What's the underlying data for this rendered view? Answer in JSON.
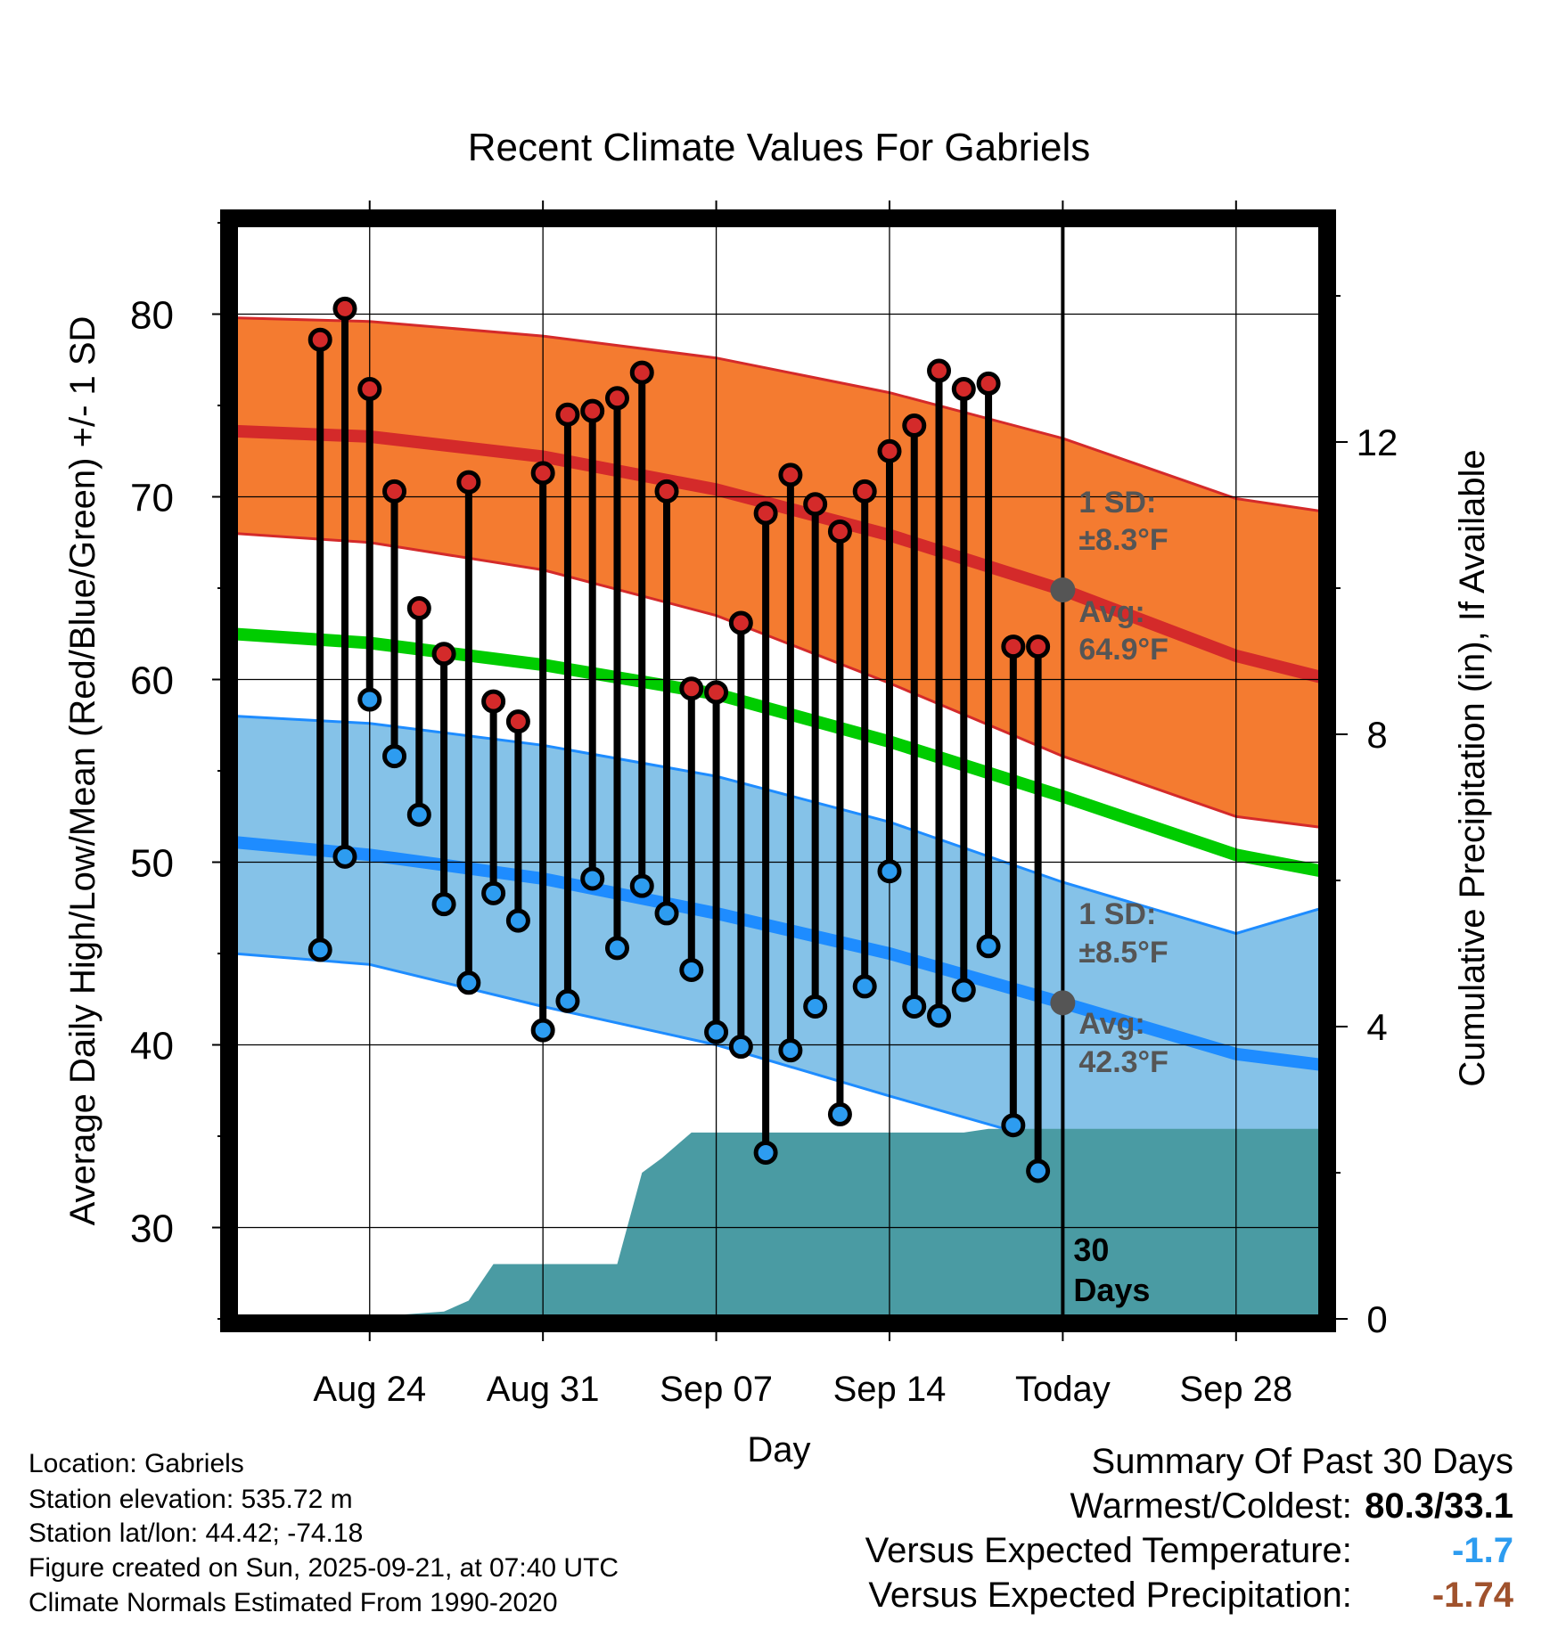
{
  "colors": {
    "high_band": "#f47b30",
    "high_band_edge": "#d42a2a",
    "high_avg": "#d42a2a",
    "low_band": "#85c2e8",
    "low_band_edge": "#1e8cff",
    "low_avg": "#1e8cff",
    "mean": "#00cc00",
    "precip": "#4a9ba3",
    "hi_marker": "#d42a2a",
    "lo_marker": "#2d9cf0",
    "annotation": "#555555",
    "anom_temp": "#2d9cf0",
    "anom_precip": "#a0522d"
  },
  "chart_data": {
    "type": "line",
    "title": "Recent Climate Values For Gabriels",
    "xlabel": "Day",
    "ylabel": "Average Daily High/Low/Mean (Red/Blue/Green) +/- 1 SD",
    "y2label": "Cumulative Precipitation (in), If Available",
    "xlim_day_offset": [
      -33.5,
      10.5
    ],
    "ylim": [
      25,
      85
    ],
    "y2lim": [
      0,
      15
    ],
    "x_ticks": [
      {
        "offset": -28,
        "label": "Aug 24"
      },
      {
        "offset": -21,
        "label": "Aug 31"
      },
      {
        "offset": -14,
        "label": "Sep 07"
      },
      {
        "offset": -7,
        "label": "Sep 14"
      },
      {
        "offset": 0,
        "label": "Today"
      },
      {
        "offset": 7,
        "label": "Sep 28"
      }
    ],
    "y_ticks": [
      30,
      40,
      50,
      60,
      70,
      80
    ],
    "y2_ticks": [
      0,
      4,
      8,
      12
    ],
    "normals_offsets": [
      -33.5,
      -28,
      -21,
      -14,
      -7,
      0,
      7,
      10.5
    ],
    "normal_high": [
      73.6,
      73.3,
      72.2,
      70.4,
      67.9,
      64.9,
      61.3,
      60.1
    ],
    "normal_high_plus_sd": [
      79.8,
      79.6,
      78.8,
      77.6,
      75.7,
      73.2,
      69.9,
      69.2
    ],
    "normal_high_minus_sd": [
      68.0,
      67.5,
      66.0,
      63.5,
      59.8,
      55.8,
      52.5,
      51.9
    ],
    "normal_mean": [
      62.5,
      62.0,
      60.8,
      59.2,
      56.6,
      53.6,
      50.4,
      49.5
    ],
    "normal_low": [
      51.1,
      50.4,
      49.1,
      47.2,
      45.0,
      42.3,
      39.5,
      38.9
    ],
    "normal_low_plus_sd": [
      58.0,
      57.6,
      56.4,
      54.7,
      52.2,
      48.9,
      46.1,
      47.5
    ],
    "normal_low_minus_sd": [
      45.0,
      44.4,
      42.1,
      40.0,
      37.2,
      34.5,
      32.1,
      31.3
    ],
    "days": [
      {
        "offset": -30,
        "high": 78.6,
        "low": 45.2
      },
      {
        "offset": -29,
        "high": 80.3,
        "low": 50.3
      },
      {
        "offset": -28,
        "high": 75.9,
        "low": 58.9
      },
      {
        "offset": -27,
        "high": 70.3,
        "low": 55.8
      },
      {
        "offset": -26,
        "high": 63.9,
        "low": 52.6
      },
      {
        "offset": -25,
        "high": 61.4,
        "low": 47.7
      },
      {
        "offset": -24,
        "high": 70.8,
        "low": 43.4
      },
      {
        "offset": -23,
        "high": 58.8,
        "low": 48.3
      },
      {
        "offset": -22,
        "high": 57.7,
        "low": 46.8
      },
      {
        "offset": -21,
        "high": 71.3,
        "low": 40.8
      },
      {
        "offset": -20,
        "high": 74.5,
        "low": 42.4
      },
      {
        "offset": -19,
        "high": 74.7,
        "low": 49.1
      },
      {
        "offset": -18,
        "high": 75.4,
        "low": 45.3
      },
      {
        "offset": -17,
        "high": 76.8,
        "low": 48.7
      },
      {
        "offset": -16,
        "high": 70.3,
        "low": 47.2
      },
      {
        "offset": -15,
        "high": 59.5,
        "low": 44.1
      },
      {
        "offset": -14,
        "high": 59.3,
        "low": 40.7
      },
      {
        "offset": -13,
        "high": 63.1,
        "low": 39.9
      },
      {
        "offset": -12,
        "high": 69.1,
        "low": 34.1
      },
      {
        "offset": -11,
        "high": 71.2,
        "low": 39.7
      },
      {
        "offset": -10,
        "high": 69.6,
        "low": 42.1
      },
      {
        "offset": -9,
        "high": 68.1,
        "low": 36.2
      },
      {
        "offset": -8,
        "high": 70.3,
        "low": 43.2
      },
      {
        "offset": -7,
        "high": 72.5,
        "low": 49.5
      },
      {
        "offset": -6,
        "high": 73.9,
        "low": 42.1
      },
      {
        "offset": -5,
        "high": 76.9,
        "low": 41.6
      },
      {
        "offset": -4,
        "high": 75.9,
        "low": 43.0
      },
      {
        "offset": -3,
        "high": 76.2,
        "low": 45.4
      },
      {
        "offset": -2,
        "high": 61.8,
        "low": 35.6
      },
      {
        "offset": -1,
        "high": 61.8,
        "low": 33.1
      }
    ],
    "precip_offsets": [
      -33.5,
      -28,
      -27,
      -25,
      -24,
      -23,
      -18,
      -17,
      -16.2,
      -15,
      -4,
      -3,
      0,
      10.5
    ],
    "precip_values": [
      0,
      0,
      0.05,
      0.1,
      0.25,
      0.75,
      0.75,
      2.0,
      2.2,
      2.55,
      2.55,
      2.6,
      2.6,
      2.6
    ],
    "annotations": {
      "high_sd_label": "1 SD:",
      "high_sd_value": "±8.3°F",
      "high_avg_label": "Avg:",
      "high_avg_value": "64.9°F",
      "low_sd_label": "1 SD:",
      "low_sd_value": "±8.5°F",
      "low_avg_label": "Avg:",
      "low_avg_value": "42.3°F",
      "today_avg_high": 64.9,
      "today_avg_low": 42.3,
      "precip_days_label_1": "30",
      "precip_days_label_2": "Days"
    }
  },
  "metadata": {
    "location": "Location: Gabriels",
    "elevation": "Station elevation: 535.72 m",
    "latlon": "Station lat/lon: 44.42; -74.18",
    "created": "Figure created on Sun, 2025-09-21, at 07:40 UTC",
    "normals": "Climate Normals Estimated From 1990-2020"
  },
  "summary": {
    "title": "Summary Of Past 30 Days",
    "warmest_coldest_label": "Warmest/Coldest:",
    "warmest_coldest_value": "80.3/33.1",
    "temp_label": "Versus Expected Temperature:",
    "temp_value": "-1.7",
    "precip_label": "Versus Expected Precipitation:",
    "precip_value": "-1.74"
  }
}
